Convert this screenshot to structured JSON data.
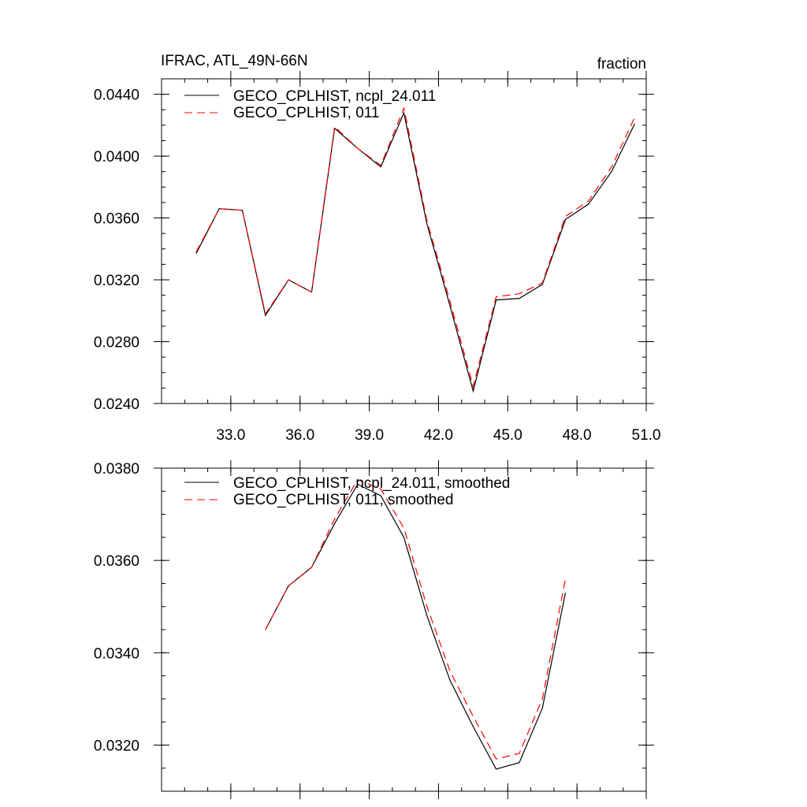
{
  "chart_data": [
    {
      "type": "line",
      "title": "IFRAC, ATL_49N-66N",
      "units_label": "fraction",
      "xlim": [
        30.0,
        51.0
      ],
      "ylim": [
        0.024,
        0.045
      ],
      "x_tick_labels": [
        "33.0",
        "36.0",
        "39.0",
        "42.0",
        "45.0",
        "48.0",
        "51.0"
      ],
      "y_tick_labels": [
        "0.0240",
        "0.0280",
        "0.0320",
        "0.0360",
        "0.0400",
        "0.0440"
      ],
      "x": [
        31.5,
        32.5,
        33.5,
        34.5,
        35.5,
        36.5,
        37.5,
        38.5,
        39.5,
        40.5,
        41.5,
        42.5,
        43.5,
        44.5,
        45.5,
        46.5,
        47.5,
        48.5,
        49.5,
        50.5
      ],
      "series": [
        {
          "name": "GECO_CPLHIST, ncpl_24.011",
          "color": "#000000",
          "dash": "solid",
          "values": [
            0.0337,
            0.0366,
            0.0365,
            0.0297,
            0.032,
            0.0312,
            0.0418,
            0.0405,
            0.0393,
            0.0428,
            0.0356,
            0.0303,
            0.0248,
            0.0307,
            0.0308,
            0.0317,
            0.0359,
            0.0369,
            0.039,
            0.0421
          ]
        },
        {
          "name": "GECO_CPLHIST, 011",
          "color": "#ff0000",
          "dash": "dashed",
          "values": [
            0.0338,
            0.0366,
            0.0365,
            0.0298,
            0.032,
            0.0312,
            0.0419,
            0.0405,
            0.0394,
            0.0431,
            0.0358,
            0.0306,
            0.0251,
            0.0309,
            0.0311,
            0.0318,
            0.0361,
            0.0371,
            0.0393,
            0.0425
          ]
        }
      ],
      "legend_position": "top-left"
    },
    {
      "type": "line",
      "xlim": [
        30.0,
        51.0
      ],
      "ylim": [
        0.031,
        0.038
      ],
      "y_tick_labels": [
        "0.0320",
        "0.0340",
        "0.0360",
        "0.0380"
      ],
      "x": [
        34.5,
        35.5,
        36.5,
        37.5,
        38.5,
        39.5,
        40.5,
        41.5,
        42.5,
        43.5,
        44.5,
        45.5,
        46.5,
        47.5
      ],
      "series": [
        {
          "name": "GECO_CPLHIST, ncpl_24.011, smoothed",
          "color": "#000000",
          "dash": "solid",
          "values": [
            0.0345,
            0.03545,
            0.03585,
            0.0368,
            0.03765,
            0.0374,
            0.0365,
            0.0348,
            0.0334,
            0.0324,
            0.03148,
            0.03162,
            0.0328,
            0.0353
          ]
        },
        {
          "name": "GECO_CPLHIST, 011, smoothed",
          "color": "#ff0000",
          "dash": "dashed",
          "values": [
            0.0345,
            0.03545,
            0.03585,
            0.0369,
            0.03775,
            0.03755,
            0.0367,
            0.035,
            0.0336,
            0.03262,
            0.0317,
            0.03182,
            0.033,
            0.0356
          ]
        }
      ],
      "legend_position": "top-left"
    }
  ]
}
